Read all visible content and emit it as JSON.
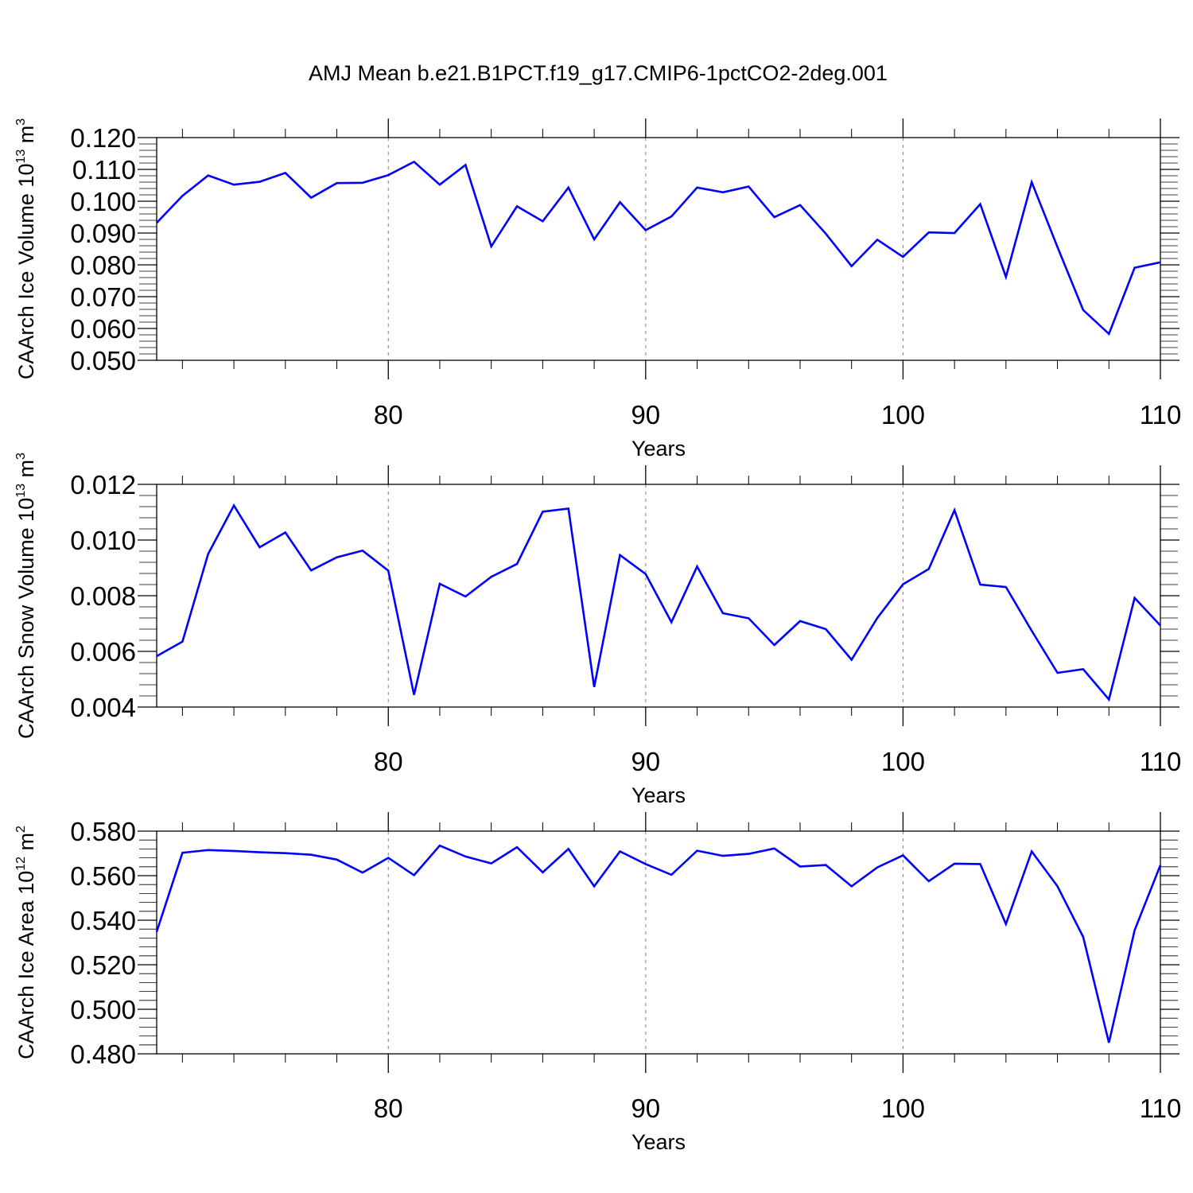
{
  "title": "AMJ Mean b.e21.B1PCT.f19_g17.CMIP6-1pctCO2-2deg.001",
  "chart_data": [
    {
      "type": "line",
      "ylabel": {
        "prefix": "CAArch Ice Volume 10",
        "exp": "13",
        "unit": " m",
        "unit_exp": "3"
      },
      "xlabel": "Years",
      "xlim": [
        71,
        110
      ],
      "ylim": [
        0.05,
        0.12
      ],
      "xticks": [
        80,
        90,
        100,
        110
      ],
      "yticks": [
        0.05,
        0.06,
        0.07,
        0.08,
        0.09,
        0.1,
        0.11,
        0.12
      ],
      "ytick_labels": [
        "0.050",
        "0.060",
        "0.070",
        "0.080",
        "0.090",
        "0.100",
        "0.110",
        "0.120"
      ],
      "grid_x": [
        80,
        90,
        100
      ],
      "color": "#0000ff",
      "x": [
        71,
        72,
        73,
        74,
        75,
        76,
        77,
        78,
        79,
        80,
        81,
        82,
        83,
        84,
        85,
        86,
        87,
        88,
        89,
        90,
        91,
        92,
        93,
        94,
        95,
        96,
        97,
        98,
        99,
        100,
        101,
        102,
        103,
        104,
        105,
        106,
        107,
        108,
        109,
        110
      ],
      "values": [
        0.0932,
        0.1017,
        0.1081,
        0.1052,
        0.1061,
        0.1089,
        0.1011,
        0.1057,
        0.1058,
        0.1082,
        0.1124,
        0.1052,
        0.1114,
        0.0858,
        0.0984,
        0.0937,
        0.1043,
        0.088,
        0.0997,
        0.0909,
        0.0952,
        0.1043,
        0.1028,
        0.1046,
        0.095,
        0.0988,
        0.0898,
        0.0796,
        0.0879,
        0.0825,
        0.0902,
        0.09,
        0.0991,
        0.0762,
        0.106,
        0.0856,
        0.0658,
        0.0583,
        0.0791,
        0.0808
      ]
    },
    {
      "type": "line",
      "ylabel": {
        "prefix": "CAArch Snow Volume 10",
        "exp": "13",
        "unit": " m",
        "unit_exp": "3"
      },
      "xlabel": "Years",
      "xlim": [
        71,
        110
      ],
      "ylim": [
        0.004,
        0.012
      ],
      "xticks": [
        80,
        90,
        100,
        110
      ],
      "yticks": [
        0.004,
        0.006,
        0.008,
        0.01,
        0.012
      ],
      "ytick_labels": [
        "0.004",
        "0.006",
        "0.008",
        "0.010",
        "0.012"
      ],
      "grid_x": [
        80,
        90,
        100
      ],
      "color": "#0000ff",
      "x": [
        71,
        72,
        73,
        74,
        75,
        76,
        77,
        78,
        79,
        80,
        81,
        82,
        83,
        84,
        85,
        86,
        87,
        88,
        89,
        90,
        91,
        92,
        93,
        94,
        95,
        96,
        97,
        98,
        99,
        100,
        101,
        102,
        103,
        104,
        105,
        106,
        107,
        108,
        109,
        110
      ],
      "values": [
        0.00583,
        0.00635,
        0.0095,
        0.01124,
        0.00974,
        0.01027,
        0.00891,
        0.00938,
        0.00962,
        0.0089,
        0.00444,
        0.00843,
        0.00797,
        0.00868,
        0.00914,
        0.01102,
        0.01113,
        0.00472,
        0.00946,
        0.00878,
        0.00705,
        0.00905,
        0.00737,
        0.00719,
        0.00623,
        0.00709,
        0.0068,
        0.0057,
        0.0072,
        0.00841,
        0.00896,
        0.01107,
        0.0084,
        0.00831,
        0.00674,
        0.00523,
        0.00536,
        0.00427,
        0.00792,
        0.00693
      ]
    },
    {
      "type": "line",
      "ylabel": {
        "prefix": "CAArch Ice Area 10",
        "exp": "12",
        "unit": " m",
        "unit_exp": "2"
      },
      "xlabel": "Years",
      "xlim": [
        71,
        110
      ],
      "ylim": [
        0.48,
        0.58
      ],
      "xticks": [
        80,
        90,
        100,
        110
      ],
      "yticks": [
        0.48,
        0.5,
        0.52,
        0.54,
        0.56,
        0.58
      ],
      "ytick_labels": [
        "0.480",
        "0.500",
        "0.520",
        "0.540",
        "0.560",
        "0.580"
      ],
      "grid_x": [
        80,
        90,
        100
      ],
      "color": "#0000ff",
      "x": [
        71,
        72,
        73,
        74,
        75,
        76,
        77,
        78,
        79,
        80,
        81,
        82,
        83,
        84,
        85,
        86,
        87,
        88,
        89,
        90,
        91,
        92,
        93,
        94,
        95,
        96,
        97,
        98,
        99,
        100,
        101,
        102,
        103,
        104,
        105,
        106,
        107,
        108,
        109,
        110
      ],
      "values": [
        0.5348,
        0.5703,
        0.5715,
        0.5711,
        0.5705,
        0.5701,
        0.5694,
        0.5672,
        0.5614,
        0.568,
        0.5602,
        0.5735,
        0.5686,
        0.5655,
        0.5728,
        0.5615,
        0.572,
        0.5552,
        0.5709,
        0.5652,
        0.5604,
        0.5712,
        0.5689,
        0.5698,
        0.5722,
        0.5641,
        0.5648,
        0.5552,
        0.5637,
        0.5691,
        0.5575,
        0.5654,
        0.5652,
        0.5383,
        0.5709,
        0.5552,
        0.5325,
        0.485,
        0.5355,
        0.5647
      ]
    }
  ]
}
